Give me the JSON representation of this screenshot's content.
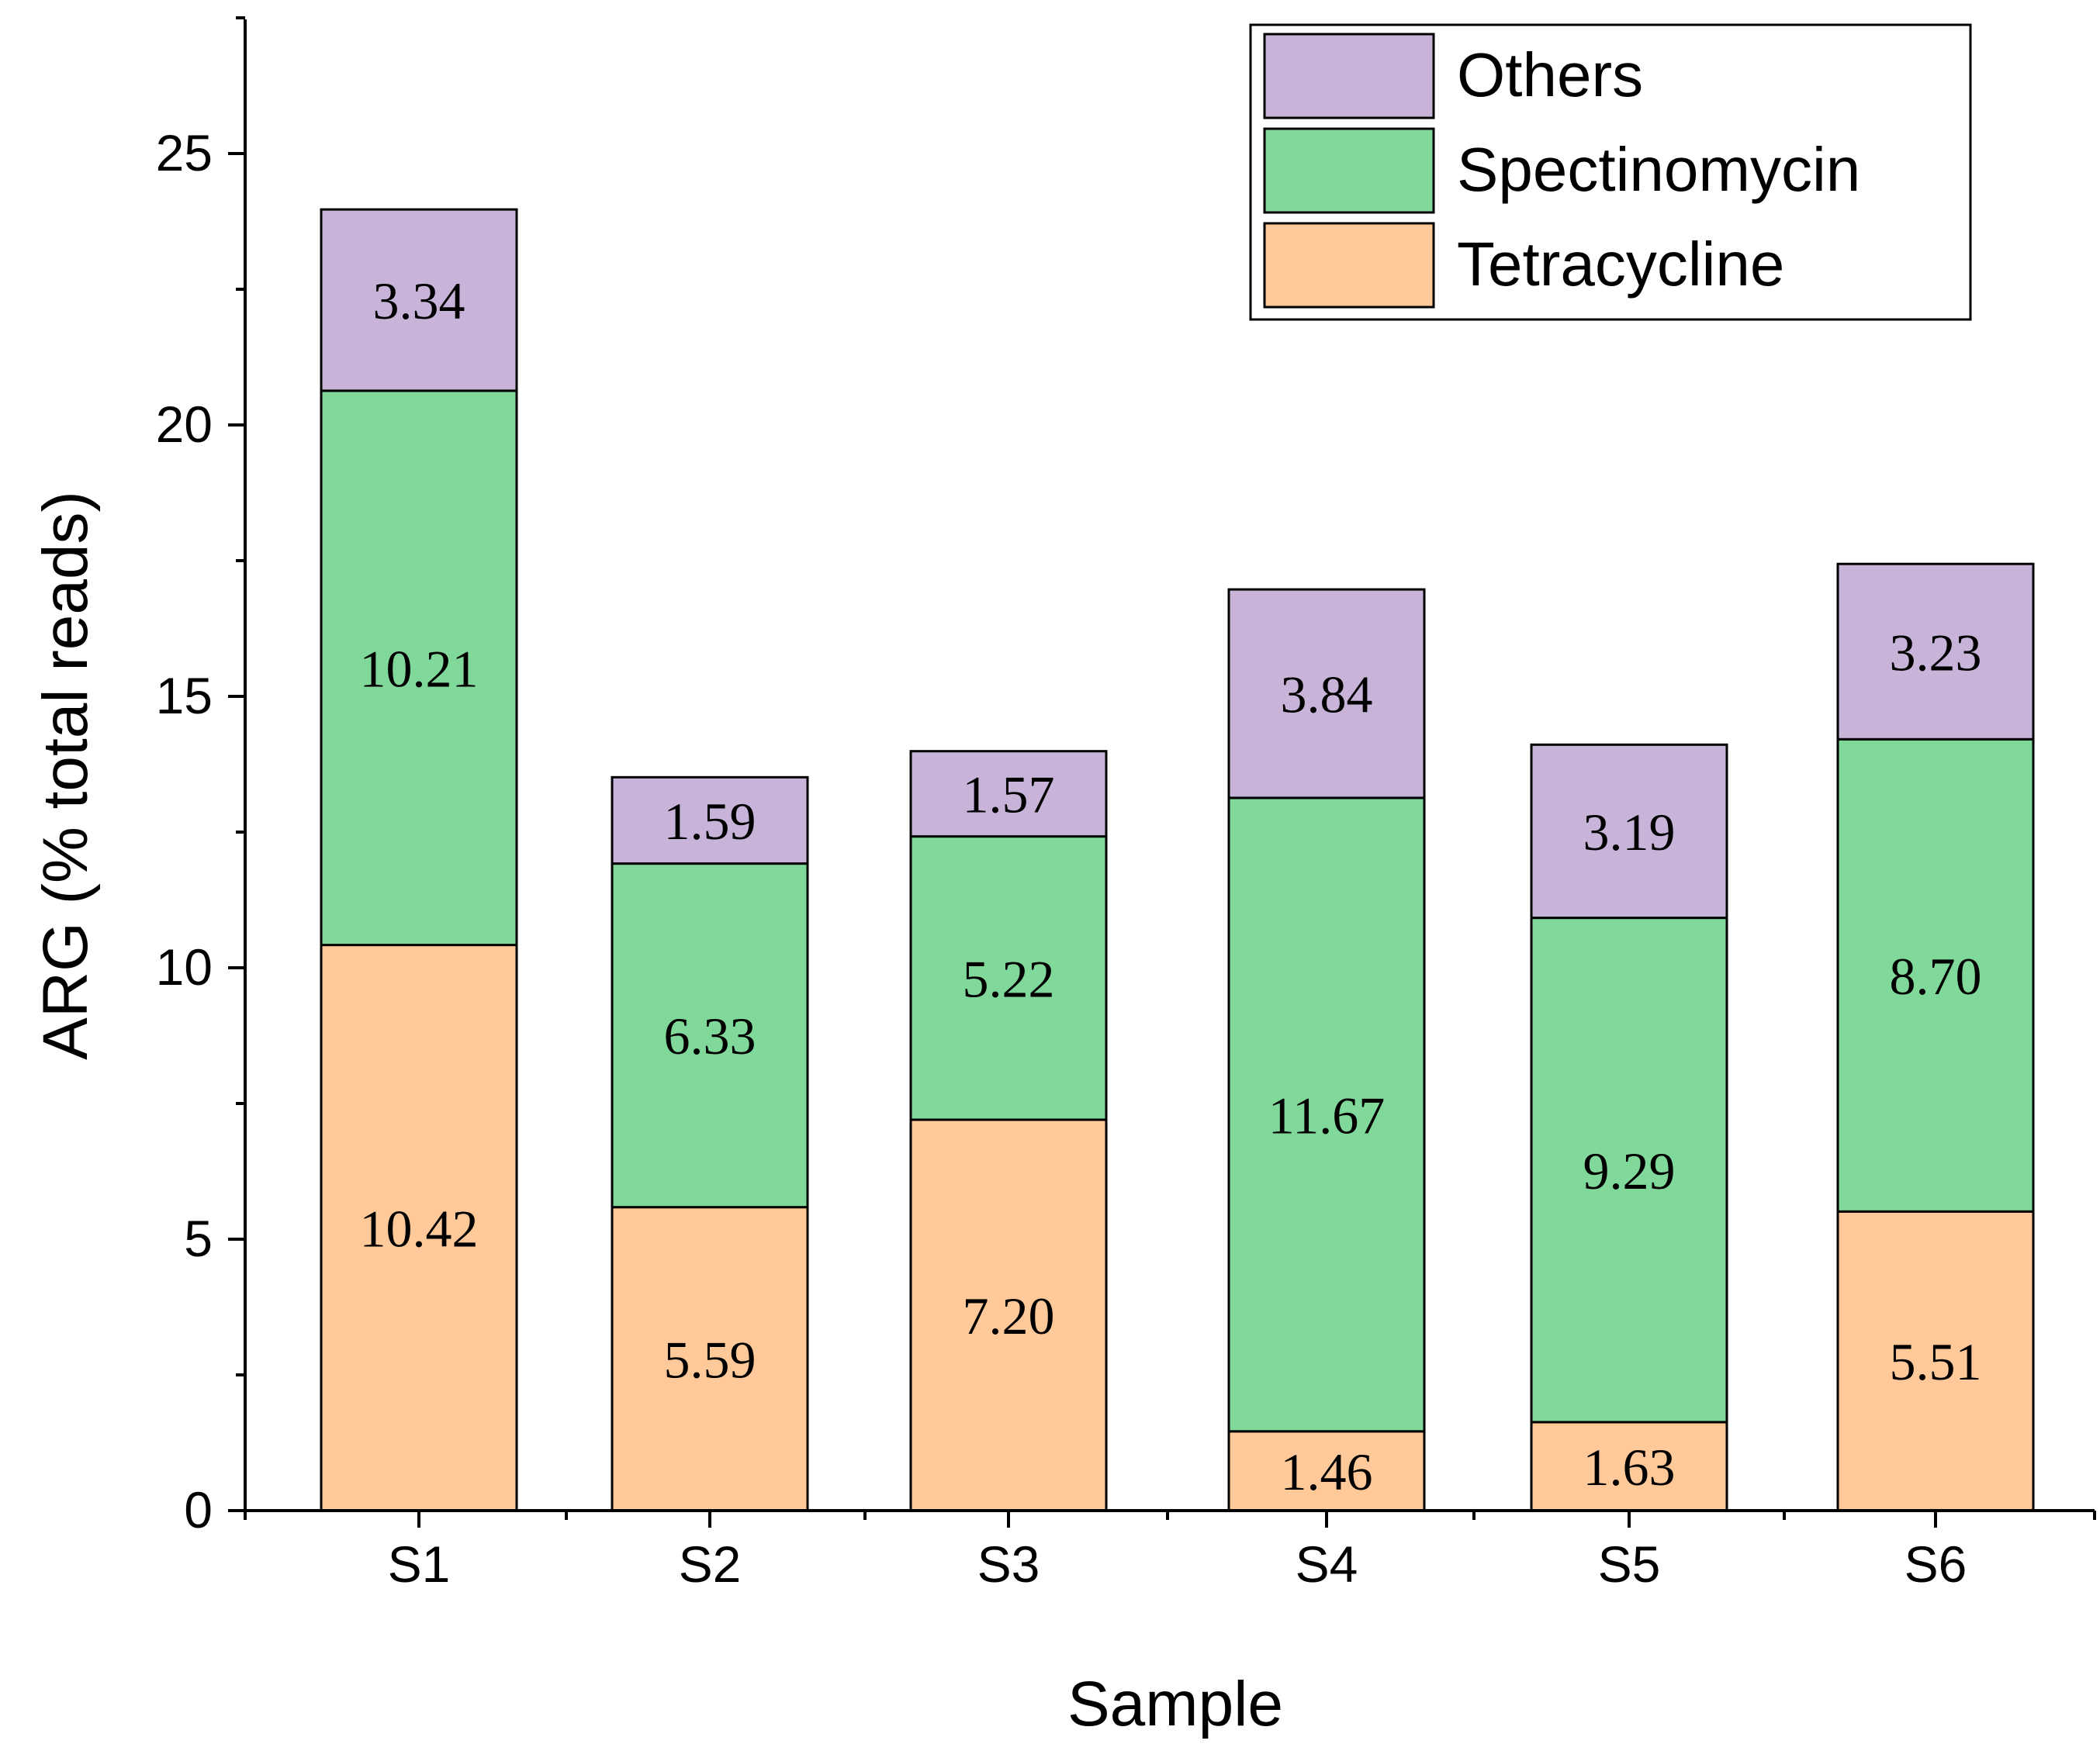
{
  "chart_data": {
    "type": "bar",
    "stacked": true,
    "categories": [
      "S1",
      "S2",
      "S3",
      "S4",
      "S5",
      "S6"
    ],
    "series": [
      {
        "name": "Tetracycline",
        "color": "#FFC999",
        "values": [
          10.42,
          5.59,
          7.2,
          1.46,
          1.63,
          5.51
        ],
        "labels": [
          "10.42",
          "5.59",
          "7.20",
          "1.46",
          "1.63",
          "5.51"
        ]
      },
      {
        "name": "Spectinomycin",
        "color": "#80D99A",
        "values": [
          10.21,
          6.33,
          5.22,
          11.67,
          9.29,
          8.7
        ],
        "labels": [
          "10.21",
          "6.33",
          "5.22",
          "11.67",
          "9.29",
          "8.70"
        ]
      },
      {
        "name": "Others",
        "color": "#C8B4D8",
        "values": [
          3.34,
          1.59,
          1.57,
          3.84,
          3.19,
          3.23
        ],
        "labels": [
          "3.34",
          "1.59",
          "1.57",
          "3.84",
          "3.19",
          "3.23"
        ]
      }
    ],
    "xlabel": "Sample",
    "ylabel": "ARG (% total reads)",
    "ylim": [
      0,
      27.5
    ],
    "yticks": [
      0,
      5,
      10,
      15,
      20,
      25
    ],
    "ytick_labels": [
      "0",
      "5",
      "10",
      "15",
      "20",
      "25"
    ],
    "legend_position": "top-right",
    "legend_order": [
      "Others",
      "Spectinomycin",
      "Tetracycline"
    ],
    "grid": false
  }
}
